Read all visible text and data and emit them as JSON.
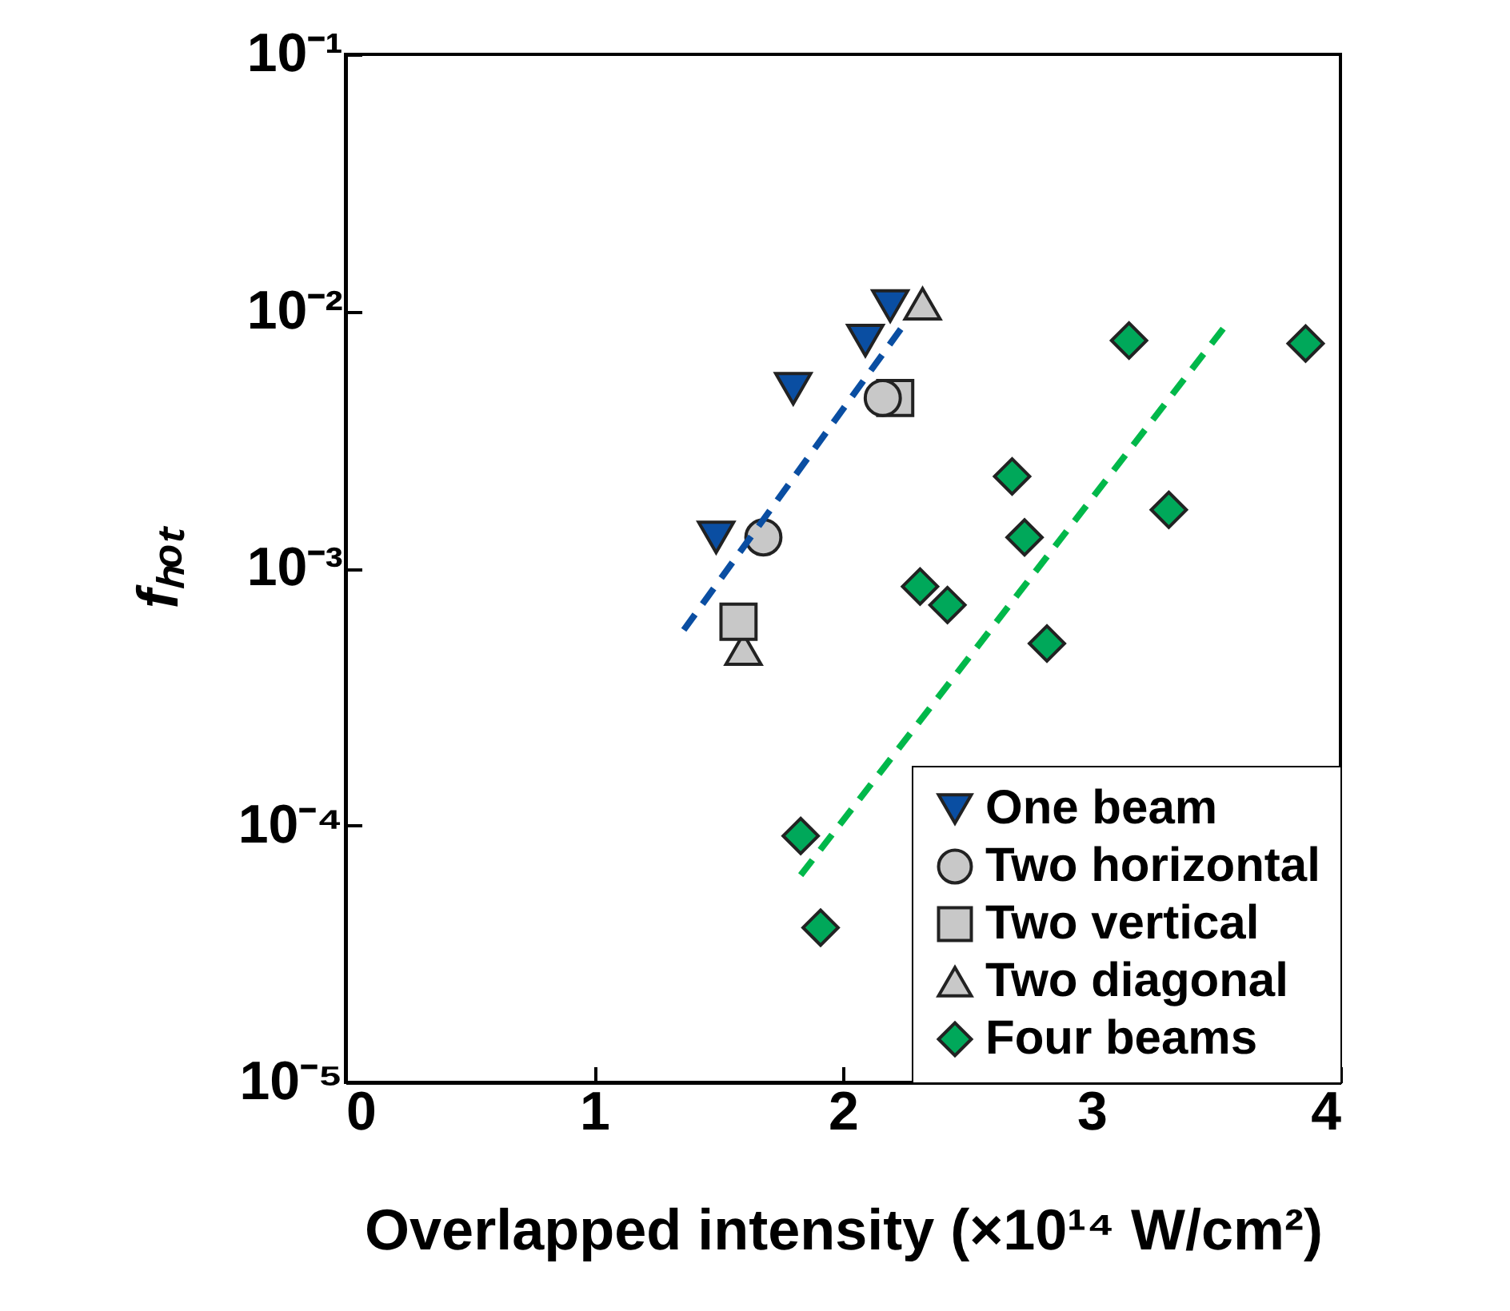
{
  "chart_data": {
    "type": "scatter",
    "xlabel": "Overlapped intensity (×10¹⁴ W/cm²)",
    "ylabel": "fₕₒₜ",
    "xlim": [
      0,
      4
    ],
    "xticks": [
      0,
      1,
      2,
      3,
      4
    ],
    "ylim": [
      1e-05,
      0.1
    ],
    "yticks": [
      {
        "value": 0.1,
        "label": "10⁻¹"
      },
      {
        "value": 0.01,
        "label": "10⁻²"
      },
      {
        "value": 0.001,
        "label": "10⁻³"
      },
      {
        "value": 0.0001,
        "label": "10⁻⁴"
      },
      {
        "value": 1e-05,
        "label": "10⁻⁵"
      }
    ],
    "log": "y",
    "grid": false,
    "legend": "bottom right",
    "series": [
      {
        "name": "One beam",
        "color": "#0a4ea2",
        "marker": "triangle-down",
        "x": [
          1.49,
          1.8,
          2.09,
          2.19
        ],
        "values": [
          0.00132,
          0.005,
          0.0077,
          0.0105
        ]
      },
      {
        "name": "Two horizontal",
        "color": "#c8c8c8",
        "marker": "circle",
        "x": [
          1.68,
          2.16
        ],
        "values": [
          0.00132,
          0.0046
        ]
      },
      {
        "name": "Two vertical",
        "color": "#c8c8c8",
        "marker": "square",
        "x": [
          1.58,
          2.21
        ],
        "values": [
          0.00062,
          0.0046
        ]
      },
      {
        "name": "Two diagonal",
        "color": "#c8c8c8",
        "marker": "triangle",
        "x": [
          1.6,
          2.32
        ],
        "values": [
          0.000485,
          0.0107
        ]
      },
      {
        "name": "Four beams",
        "color": "#00a85a",
        "marker": "diamond",
        "x": [
          1.83,
          1.91,
          2.31,
          2.42,
          2.68,
          2.73,
          2.82,
          3.15,
          3.31,
          3.86
        ],
        "values": [
          9.1e-05,
          4e-05,
          0.00085,
          0.00072,
          0.00228,
          0.00132,
          0.00051,
          0.0077,
          0.00169,
          0.0075
        ]
      },
      {
        "type": "line",
        "color": "#0a4ea2",
        "line_style": "dashed",
        "x": [
          1.36,
          2.26
        ],
        "values": [
          0.000576,
          0.0093
        ]
      },
      {
        "type": "line",
        "color": "#00b84a",
        "line_style": "dashed",
        "x": [
          1.83,
          3.53
        ],
        "values": [
          6.4e-05,
          0.0086
        ]
      }
    ]
  }
}
